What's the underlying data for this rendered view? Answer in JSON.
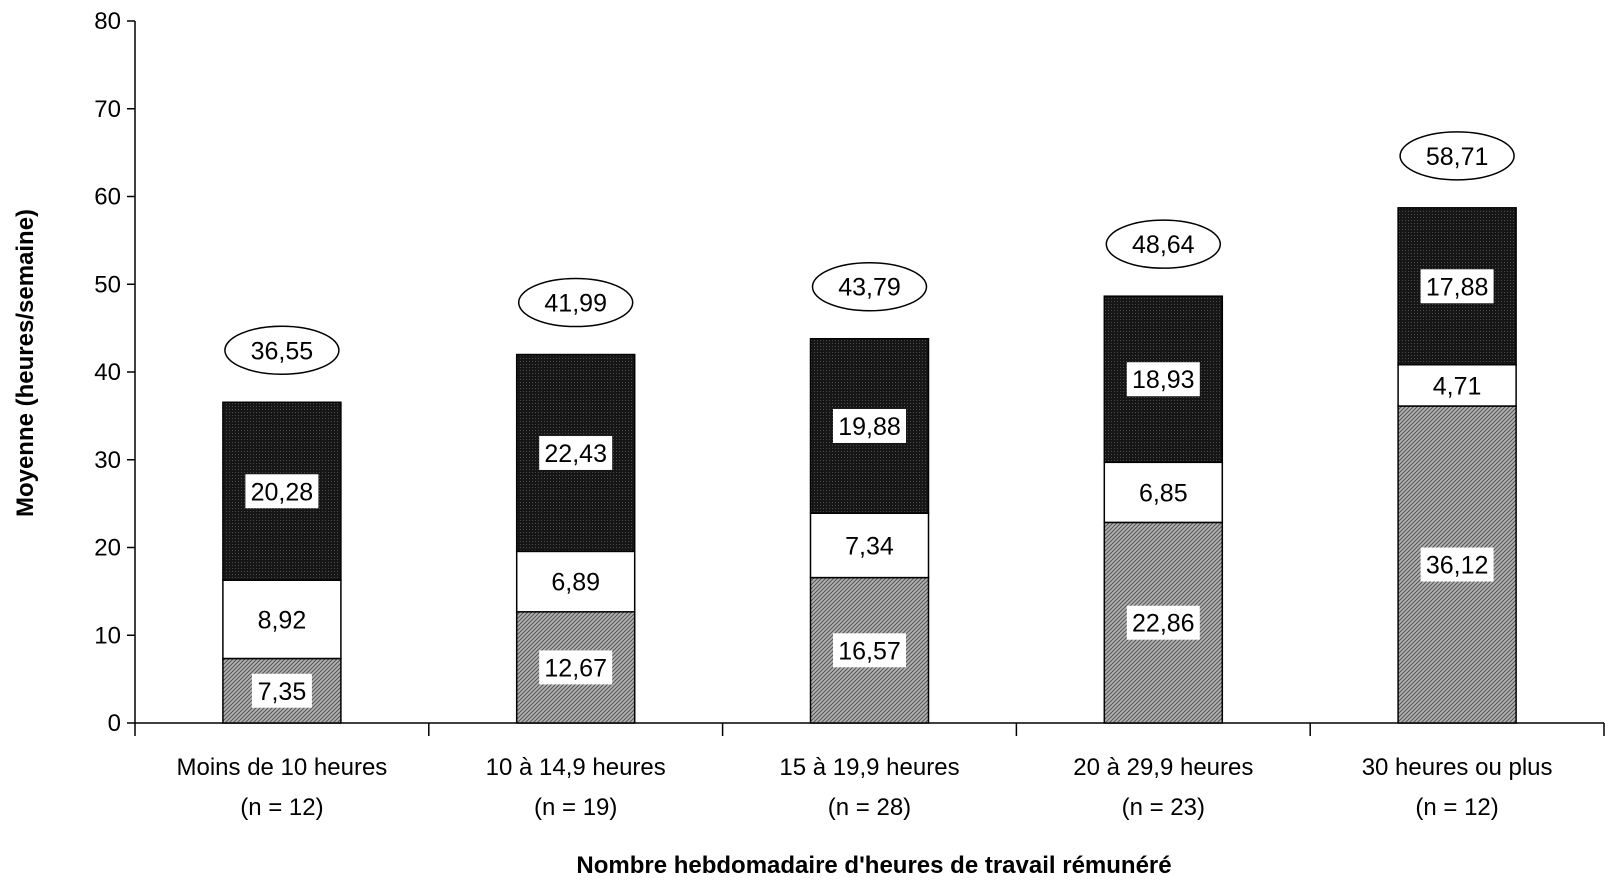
{
  "chart_data": {
    "type": "bar",
    "stacked": true,
    "xlabel": "Nombre hebdomadaire d'heures de travail rémunéré",
    "ylabel": "Moyenne (heures/semaine)",
    "ylim": [
      0,
      80
    ],
    "yticks": [
      0,
      10,
      20,
      30,
      40,
      50,
      60,
      70,
      80
    ],
    "grid": false,
    "categories": [
      [
        "Moins de 10 heures",
        "(n = 12)"
      ],
      [
        "10 à 14,9 heures",
        "(n = 19)"
      ],
      [
        "15 à 19,9 heures",
        "(n = 28)"
      ],
      [
        "20 à 29,9 heures",
        "(n = 23)"
      ],
      [
        "30 heures ou plus",
        "(n = 12)"
      ]
    ],
    "series": [
      {
        "fill": "hatch-gray",
        "values": [
          7.35,
          12.67,
          16.57,
          22.86,
          36.12
        ],
        "labels": [
          "7,35",
          "12,67",
          "16,57",
          "22,86",
          "36,12"
        ]
      },
      {
        "fill": "white",
        "values": [
          8.92,
          6.89,
          7.34,
          6.85,
          4.71
        ],
        "labels": [
          "8,92",
          "6,89",
          "7,34",
          "6,85",
          "4,71"
        ]
      },
      {
        "fill": "dark",
        "values": [
          20.28,
          22.43,
          19.88,
          18.93,
          17.88
        ],
        "labels": [
          "20,28",
          "22,43",
          "19,88",
          "18,93",
          "17,88"
        ]
      }
    ],
    "totals": {
      "values": [
        36.55,
        41.99,
        43.79,
        48.64,
        58.71
      ],
      "labels": [
        "36,55",
        "41,99",
        "43,79",
        "48,64",
        "58,71"
      ]
    },
    "colors": {
      "hatch-gray": "#9a9a9a",
      "white": "#ffffff",
      "dark": "#1c1c1c"
    }
  }
}
